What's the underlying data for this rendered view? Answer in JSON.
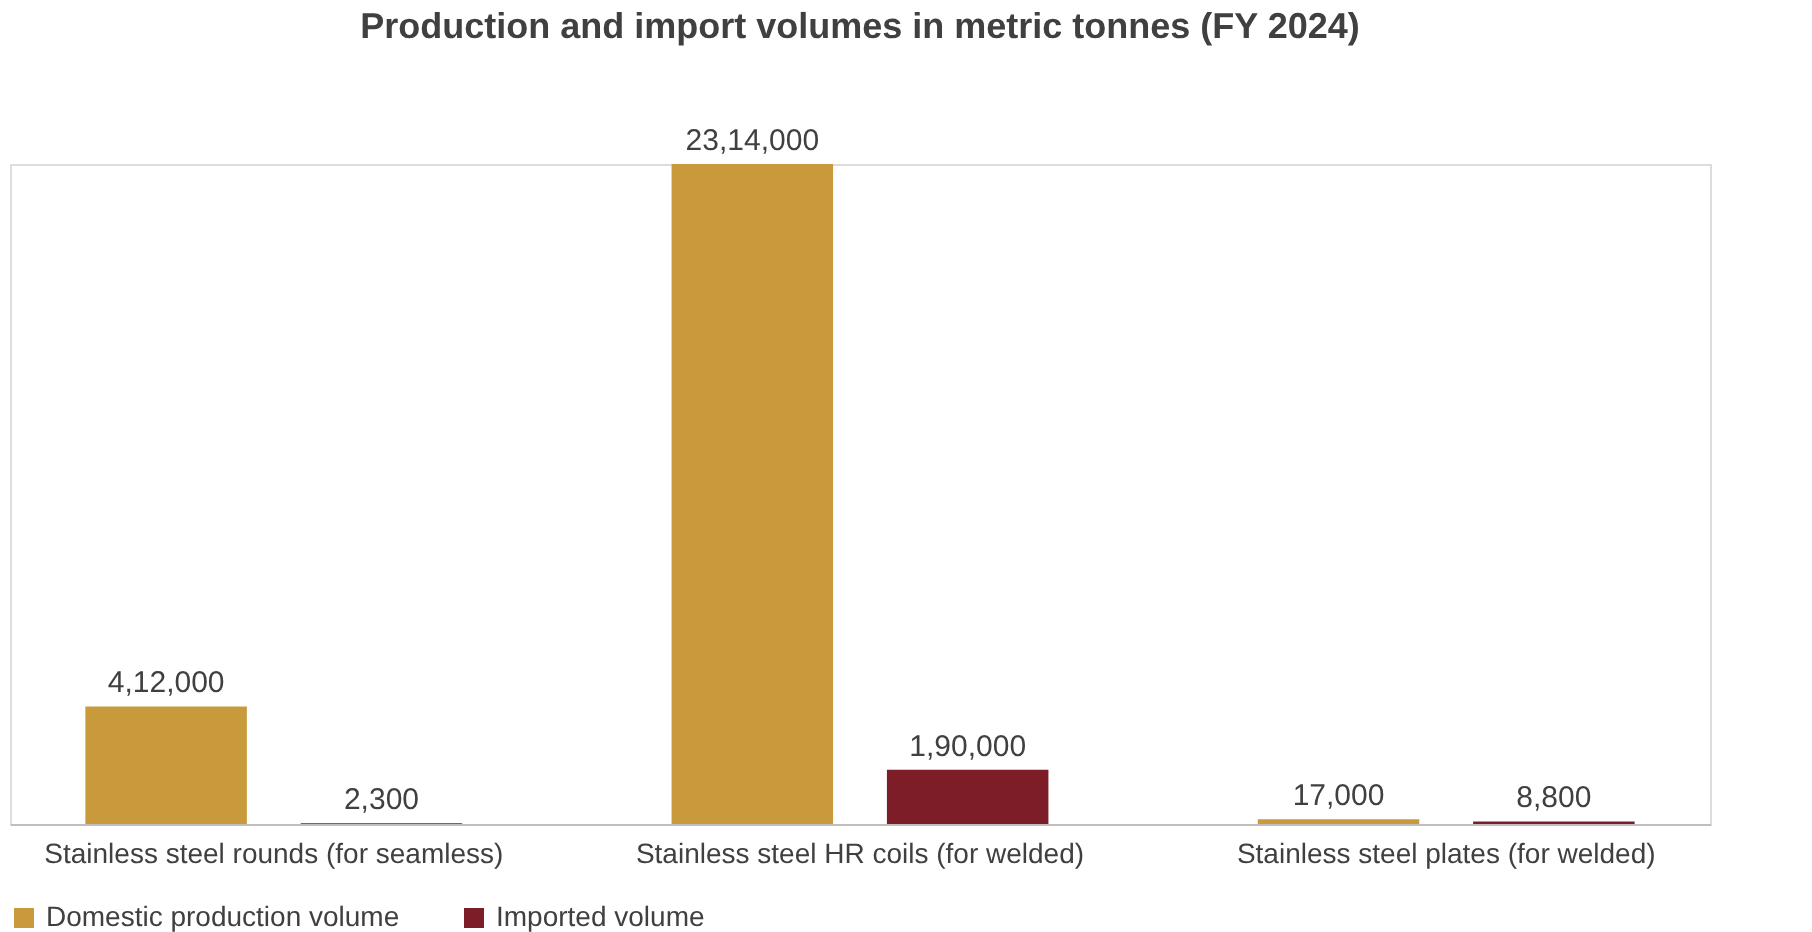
{
  "chart_data": {
    "type": "bar",
    "title": "Production and import volumes in metric tonnes (FY 2024)",
    "categories": [
      "Stainless steel rounds (for seamless)",
      "Stainless steel HR coils (for welded)",
      "Stainless steel plates (for welded)"
    ],
    "series": [
      {
        "name": "Domestic production volume",
        "color": "#c99a3b",
        "values": [
          412000,
          2314000,
          17000
        ],
        "value_labels": [
          "4,12,000",
          "23,14,000",
          "17,000"
        ]
      },
      {
        "name": "Imported volume",
        "color": "#7d1d27",
        "values": [
          2300,
          190000,
          8800
        ],
        "value_labels": [
          "2,300",
          "1,90,000",
          "8,800"
        ]
      }
    ],
    "legend": "bottom",
    "grid": false
  }
}
